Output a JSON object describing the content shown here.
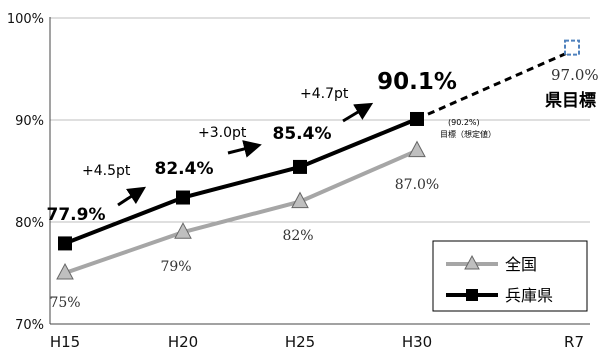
{
  "chart_data": {
    "type": "line",
    "categories": [
      "H15",
      "H20",
      "H25",
      "H30",
      "R7"
    ],
    "yticks": [
      "70%",
      "80%",
      "90%",
      "100%"
    ],
    "ylim": [
      70,
      100
    ],
    "grid": true,
    "legend_position": "bottom-right",
    "series": [
      {
        "name": "全国",
        "values": [
          75,
          79,
          82,
          87,
          null
        ],
        "labels": [
          "75%",
          "79%",
          "82%",
          "87.0%",
          ""
        ],
        "color": "#a6a6a6",
        "marker": "triangle"
      },
      {
        "name": "兵庫県",
        "values": [
          77.9,
          82.4,
          85.4,
          90.1,
          null
        ],
        "labels": [
          "77.9%",
          "82.4%",
          "85.4%",
          "90.1%",
          ""
        ],
        "color": "#000000",
        "marker": "square"
      }
    ],
    "target": {
      "x_index": 4,
      "value": 97.0,
      "label": "97.0%",
      "name": "県目標",
      "color": "#4f81bd"
    },
    "annotations": {
      "increments": [
        "+4.5pt",
        "+3.0pt",
        "+4.7pt"
      ],
      "assumed_value": "(90.2%)",
      "assumed_label": "目標（想定値）"
    }
  }
}
